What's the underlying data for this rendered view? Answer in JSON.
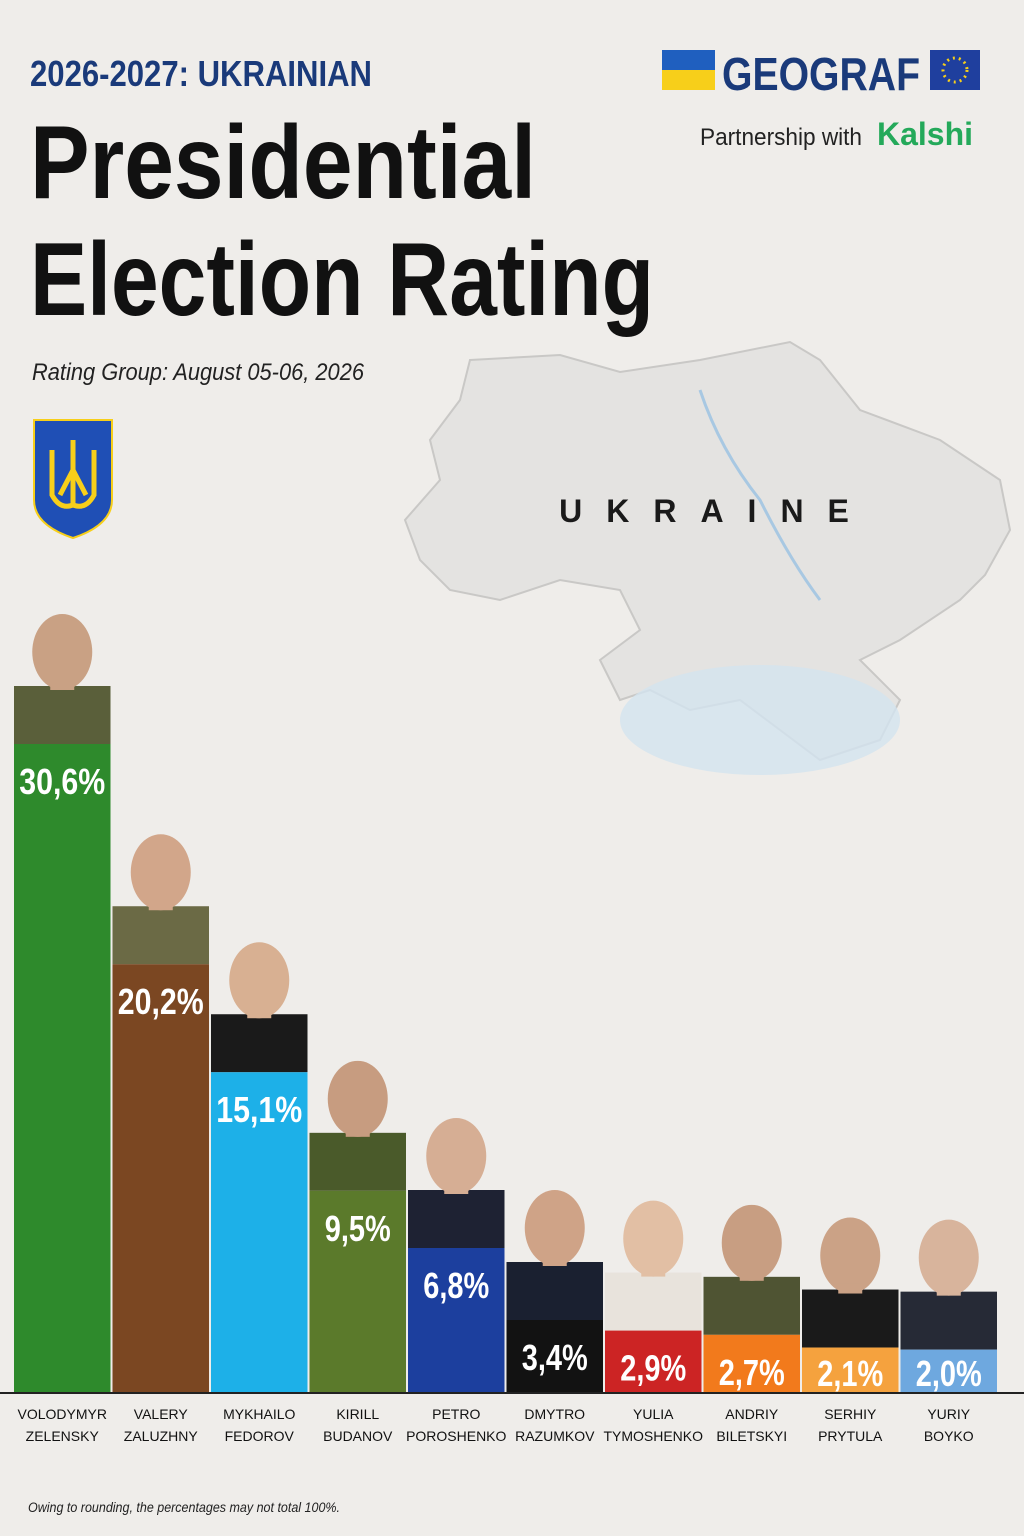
{
  "header": {
    "kicker": "2026-2027: UKRAINIAN",
    "title_line1": "Presidential",
    "title_line2": "Election Rating",
    "source": "Rating Group: August 05-06, 2026",
    "brand": "GEOGRAF",
    "partnership": "Partnership with",
    "partner": "Kalshi",
    "map_label": "UKRAINE"
  },
  "chart_data": {
    "type": "bar",
    "categories": [
      "VOLODYMYR ZELENSKY",
      "VALERY ZALUZHNY",
      "MYKHAILO FEDOROV",
      "KIRILL BUDANOV",
      "PETRO POROSHENKO",
      "DMYTRO RAZUMKOV",
      "YULIA TYMOSHENKO",
      "ANDRIY BILETSKYI",
      "SERHIY PRYTULA",
      "YURIY BOYKO"
    ],
    "values": [
      30.6,
      20.2,
      15.1,
      9.5,
      6.8,
      3.4,
      2.9,
      2.7,
      2.1,
      2.0
    ],
    "value_labels": [
      "30,6%",
      "20,2%",
      "15,1%",
      "9,5%",
      "6,8%",
      "3,4%",
      "2,9%",
      "2,7%",
      "2,1%",
      "2,0%"
    ],
    "colors": [
      "#2e8a2c",
      "#7b4722",
      "#1db0e8",
      "#5b7a2b",
      "#1c3f9e",
      "#121212",
      "#cc2424",
      "#f27a1c",
      "#f5a23e",
      "#6ea8df"
    ]
  },
  "footnote": "Owing to rounding, the percentages may not total 100%."
}
